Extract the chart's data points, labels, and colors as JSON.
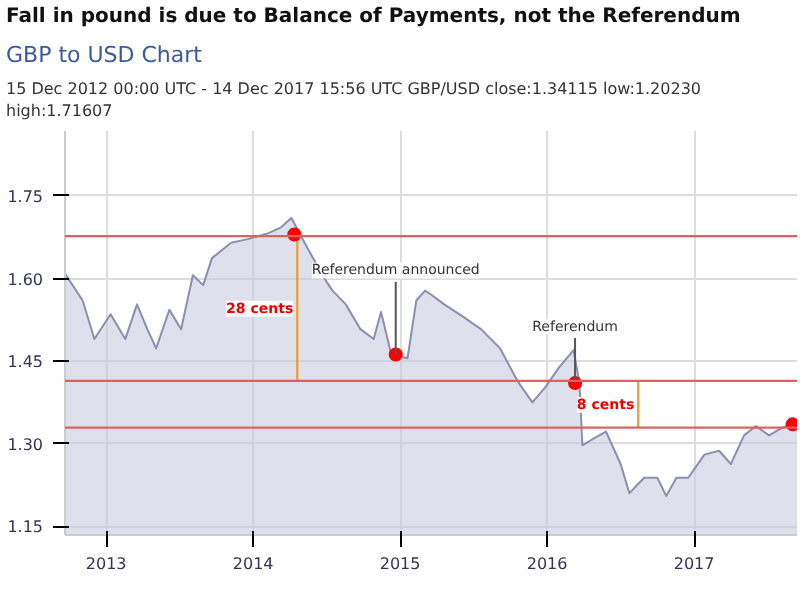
{
  "chart_data": {
    "type": "area",
    "title": "Fall in pound is due to Balance of Payments, not the Referendum",
    "subtitle": "GBP to USD Chart",
    "annotations": [
      "15 Dec 2012 00:00 UTC - 14 Dec 2017 15:56 UTC   GBP/USD close:1.34115 low:1.20230 high:1.71607",
      {
        "text": "Referendum announced",
        "x": 2014.97,
        "y": 1.462
      },
      {
        "text": "Referendum",
        "x": 2016.19,
        "y": 1.41
      },
      {
        "text": "28 cents",
        "x": 2014.3,
        "y": 1.545
      },
      {
        "text": "8 cents",
        "x": 2016.62,
        "y": 1.37
      }
    ],
    "x": [
      2012.72,
      2012.84,
      2012.92,
      2013.03,
      2013.13,
      2013.21,
      2013.28,
      2013.34,
      2013.43,
      2013.51,
      2013.59,
      2013.66,
      2013.72,
      2013.85,
      2013.97,
      2014.1,
      2014.19,
      2014.26,
      2014.35,
      2014.48,
      2014.54,
      2014.63,
      2014.73,
      2014.82,
      2014.87,
      2014.94,
      2015.05,
      2015.11,
      2015.17,
      2015.21,
      2015.3,
      2015.42,
      2015.55,
      2015.68,
      2015.8,
      2015.9,
      2015.99,
      2016.08,
      2016.18,
      2016.22,
      2016.24,
      2016.31,
      2016.4,
      2016.5,
      2016.56,
      2016.66,
      2016.75,
      2016.81,
      2016.88,
      2016.96,
      2017.07,
      2017.17,
      2017.25,
      2017.34,
      2017.42,
      2017.51,
      2017.6,
      2017.7
    ],
    "series": [
      {
        "color": "#8a8fb0",
        "values": [
          1.609,
          1.56,
          1.49,
          1.535,
          1.49,
          1.553,
          1.508,
          1.473,
          1.543,
          1.508,
          1.606,
          1.588,
          1.637,
          1.665,
          1.672,
          1.682,
          1.693,
          1.71,
          1.665,
          1.602,
          1.578,
          1.553,
          1.508,
          1.49,
          1.539,
          1.462,
          1.455,
          1.56,
          1.578,
          1.571,
          1.553,
          1.532,
          1.508,
          1.473,
          1.413,
          1.375,
          1.403,
          1.438,
          1.47,
          1.41,
          1.297,
          1.308,
          1.322,
          1.263,
          1.21,
          1.238,
          1.238,
          1.205,
          1.238,
          1.238,
          1.28,
          1.287,
          1.263,
          1.315,
          1.332,
          1.315,
          1.329,
          1.34
        ]
      },
      {
        "type": "line",
        "color": "#f0a040",
        "x": [
          2014.3,
          2014.3
        ],
        "values": [
          1.414,
          1.677
        ]
      },
      {
        "type": "line",
        "color": "#f0a040",
        "x": [
          2016.62,
          2016.62
        ],
        "values": [
          1.329,
          1.414
        ]
      },
      {
        "type": "scatter",
        "color": "#ff0000",
        "x": [
          2014.28,
          2014.97,
          2016.19,
          2017.67
        ],
        "values": [
          1.68,
          1.462,
          1.41,
          1.335
        ]
      }
    ],
    "ref_lines": [
      {
        "axis": "y",
        "value": 1.677,
        "color": "#e06060"
      },
      {
        "axis": "y",
        "value": 1.414,
        "color": "#e06060"
      },
      {
        "axis": "y",
        "value": 1.329,
        "color": "#e06060"
      }
    ],
    "xlim": [
      2012.72,
      2017.7
    ],
    "xticks": [
      2013,
      2014,
      2015,
      2016,
      2017
    ],
    "ylim": [
      1.134,
      1.868
    ],
    "yticks": [
      1.15,
      {
        "value": 1.3,
        "label": "1.30"
      },
      1.45,
      {
        "value": 1.6,
        "label": "1.60"
      },
      1.75
    ],
    "grid": true
  }
}
